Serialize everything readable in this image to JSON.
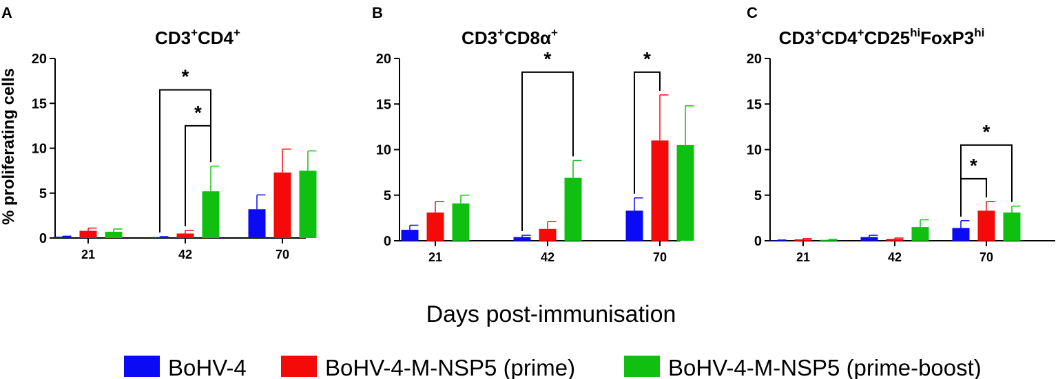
{
  "figure": {
    "xlabel": "Days post-immunisation",
    "ylabel": "% proliferating cells"
  },
  "legend": [
    {
      "label": "BoHV-4",
      "color": "#0a0af5"
    },
    {
      "label": "BoHV-4-M-NSP5 (prime)",
      "color": "#f50a0a"
    },
    {
      "label": "BoHV-4-M-NSP5 (prime-boost)",
      "color": "#10c010"
    }
  ],
  "chart_data": [
    {
      "type": "bar",
      "panel": "A",
      "title": {
        "base": [
          "CD3",
          "CD4"
        ],
        "sup": [
          "+",
          "+"
        ]
      },
      "categories": [
        "21",
        "42",
        "70"
      ],
      "ylim": [
        0,
        20
      ],
      "yticks": [
        "0",
        "5",
        "10",
        "15",
        "20"
      ],
      "series": [
        {
          "name": "BoHV-4",
          "values": [
            0.15,
            0.1,
            3.2
          ],
          "errors": [
            0.05,
            0.05,
            1.6
          ]
        },
        {
          "name": "BoHV-4-M-NSP5 (prime)",
          "values": [
            0.8,
            0.5,
            7.3
          ],
          "errors": [
            0.3,
            0.35,
            2.6
          ]
        },
        {
          "name": "BoHV-4-M-NSP5 (prime-boost)",
          "values": [
            0.7,
            5.2,
            7.5
          ],
          "errors": [
            0.3,
            2.8,
            2.2
          ]
        }
      ],
      "significance": [
        {
          "label": "*",
          "group": "42",
          "from": 0,
          "to": 2,
          "level": 16.5
        },
        {
          "label": "*",
          "group": "42",
          "from": 1,
          "to": 2,
          "level": 12.5
        }
      ]
    },
    {
      "type": "bar",
      "panel": "B",
      "title": {
        "base": [
          "CD3",
          "CD8α"
        ],
        "sup": [
          "+",
          "+"
        ]
      },
      "categories": [
        "21",
        "42",
        "70"
      ],
      "ylim": [
        0,
        20
      ],
      "yticks": [
        "0",
        "5",
        "10",
        "15",
        "20"
      ],
      "series": [
        {
          "name": "BoHV-4",
          "values": [
            1.2,
            0.4,
            3.3
          ],
          "errors": [
            0.5,
            0.2,
            1.4
          ]
        },
        {
          "name": "BoHV-4-M-NSP5 (prime)",
          "values": [
            3.1,
            1.3,
            11.0
          ],
          "errors": [
            1.2,
            0.8,
            5.0
          ]
        },
        {
          "name": "BoHV-4-M-NSP5 (prime-boost)",
          "values": [
            4.1,
            6.9,
            10.5
          ],
          "errors": [
            0.9,
            1.9,
            4.3
          ]
        }
      ],
      "significance": [
        {
          "label": "*",
          "group": "42",
          "from": 0,
          "to": 2,
          "level": 18.5
        },
        {
          "label": "*",
          "group": "70",
          "from": 0,
          "to": 1,
          "level": 18.5
        }
      ]
    },
    {
      "type": "bar",
      "panel": "C",
      "title": {
        "base": [
          "CD3",
          "CD4",
          "CD25",
          "FoxP3"
        ],
        "sup": [
          "+",
          "+",
          "hi",
          "hi"
        ]
      },
      "categories": [
        "21",
        "42",
        "70"
      ],
      "ylim": [
        0,
        20
      ],
      "yticks": [
        "0",
        "5",
        "10",
        "15",
        "20"
      ],
      "series": [
        {
          "name": "BoHV-4",
          "values": [
            0.05,
            0.4,
            1.4
          ],
          "errors": [
            0.03,
            0.2,
            0.8
          ]
        },
        {
          "name": "BoHV-4-M-NSP5 (prime)",
          "values": [
            0.15,
            0.2,
            3.3
          ],
          "errors": [
            0.1,
            0.1,
            1.0
          ]
        },
        {
          "name": "BoHV-4-M-NSP5 (prime-boost)",
          "values": [
            0.1,
            1.5,
            3.1
          ],
          "errors": [
            0.05,
            0.8,
            0.7
          ]
        }
      ],
      "significance": [
        {
          "label": "*",
          "group": "70",
          "from": 0,
          "to": 2,
          "level": 10.5
        },
        {
          "label": "*",
          "group": "70",
          "from": 0,
          "to": 1,
          "level": 6.8
        }
      ]
    }
  ]
}
